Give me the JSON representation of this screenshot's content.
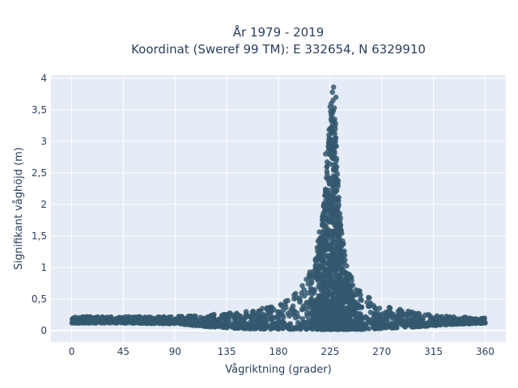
{
  "chart_data": {
    "type": "scatter",
    "title_line1": "År 1979 - 2019",
    "title_line2": "Koordinat (Sweref 99 TM): E 332654, N 6329910",
    "xlabel": "Vågriktning (grader)",
    "ylabel": "Signifikant våghöjd (m)",
    "xlim": [
      -18,
      378
    ],
    "ylim": [
      -0.18,
      4.05
    ],
    "xticks": [
      0,
      45,
      90,
      135,
      180,
      225,
      270,
      315,
      360
    ],
    "xtick_labels": [
      "0",
      "45",
      "90",
      "135",
      "180",
      "225",
      "270",
      "315",
      "360"
    ],
    "yticks": [
      0,
      0.5,
      1,
      1.5,
      2,
      2.5,
      3,
      3.5,
      4
    ],
    "ytick_labels": [
      "0",
      "0,5",
      "1",
      "1,5",
      "2",
      "2,5",
      "3",
      "3,5",
      "4"
    ],
    "grid": true,
    "marker_color": "#34586e",
    "plot_bg": "#e5ecf6",
    "envelope": {
      "x": [
        0,
        45,
        90,
        120,
        150,
        180,
        195,
        210,
        218,
        222,
        225,
        228,
        230,
        232,
        235,
        240,
        250,
        270,
        300,
        330,
        360
      ],
      "ymax": [
        0.22,
        0.22,
        0.22,
        0.25,
        0.3,
        0.4,
        0.6,
        1.0,
        1.8,
        2.6,
        3.45,
        3.8,
        3.35,
        2.4,
        1.6,
        1.0,
        0.65,
        0.4,
        0.28,
        0.22,
        0.2
      ],
      "ymin": [
        0.12,
        0.12,
        0.11,
        0.06,
        0.03,
        0.02,
        0.02,
        0.02,
        0.02,
        0.02,
        0.02,
        0.02,
        0.02,
        0.02,
        0.02,
        0.02,
        0.02,
        0.03,
        0.06,
        0.1,
        0.12
      ]
    },
    "outliers": [
      {
        "x": 228,
        "y": 3.86
      },
      {
        "x": 227,
        "y": 3.78
      },
      {
        "x": 230,
        "y": 3.7
      },
      {
        "x": 226,
        "y": 3.6
      },
      {
        "x": 225,
        "y": 3.55
      },
      {
        "x": 227,
        "y": 3.45
      },
      {
        "x": 229,
        "y": 3.35
      },
      {
        "x": 224,
        "y": 3.02
      },
      {
        "x": 221,
        "y": 2.8
      }
    ]
  }
}
